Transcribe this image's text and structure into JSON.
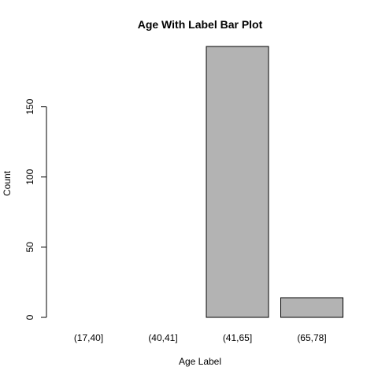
{
  "chart_data": {
    "type": "bar",
    "title": "Age With Label Bar Plot",
    "xlabel": "Age Label",
    "ylabel": "Count",
    "categories": [
      "(17,40]",
      "(40,41]",
      "(41,65]",
      "(65,78]"
    ],
    "values": [
      0,
      0,
      193,
      14
    ],
    "ylim": [
      0,
      193
    ],
    "yticks": [
      0,
      50,
      100,
      150
    ],
    "bar_color": "#b3b3b3",
    "grid": false,
    "legend": "none"
  }
}
